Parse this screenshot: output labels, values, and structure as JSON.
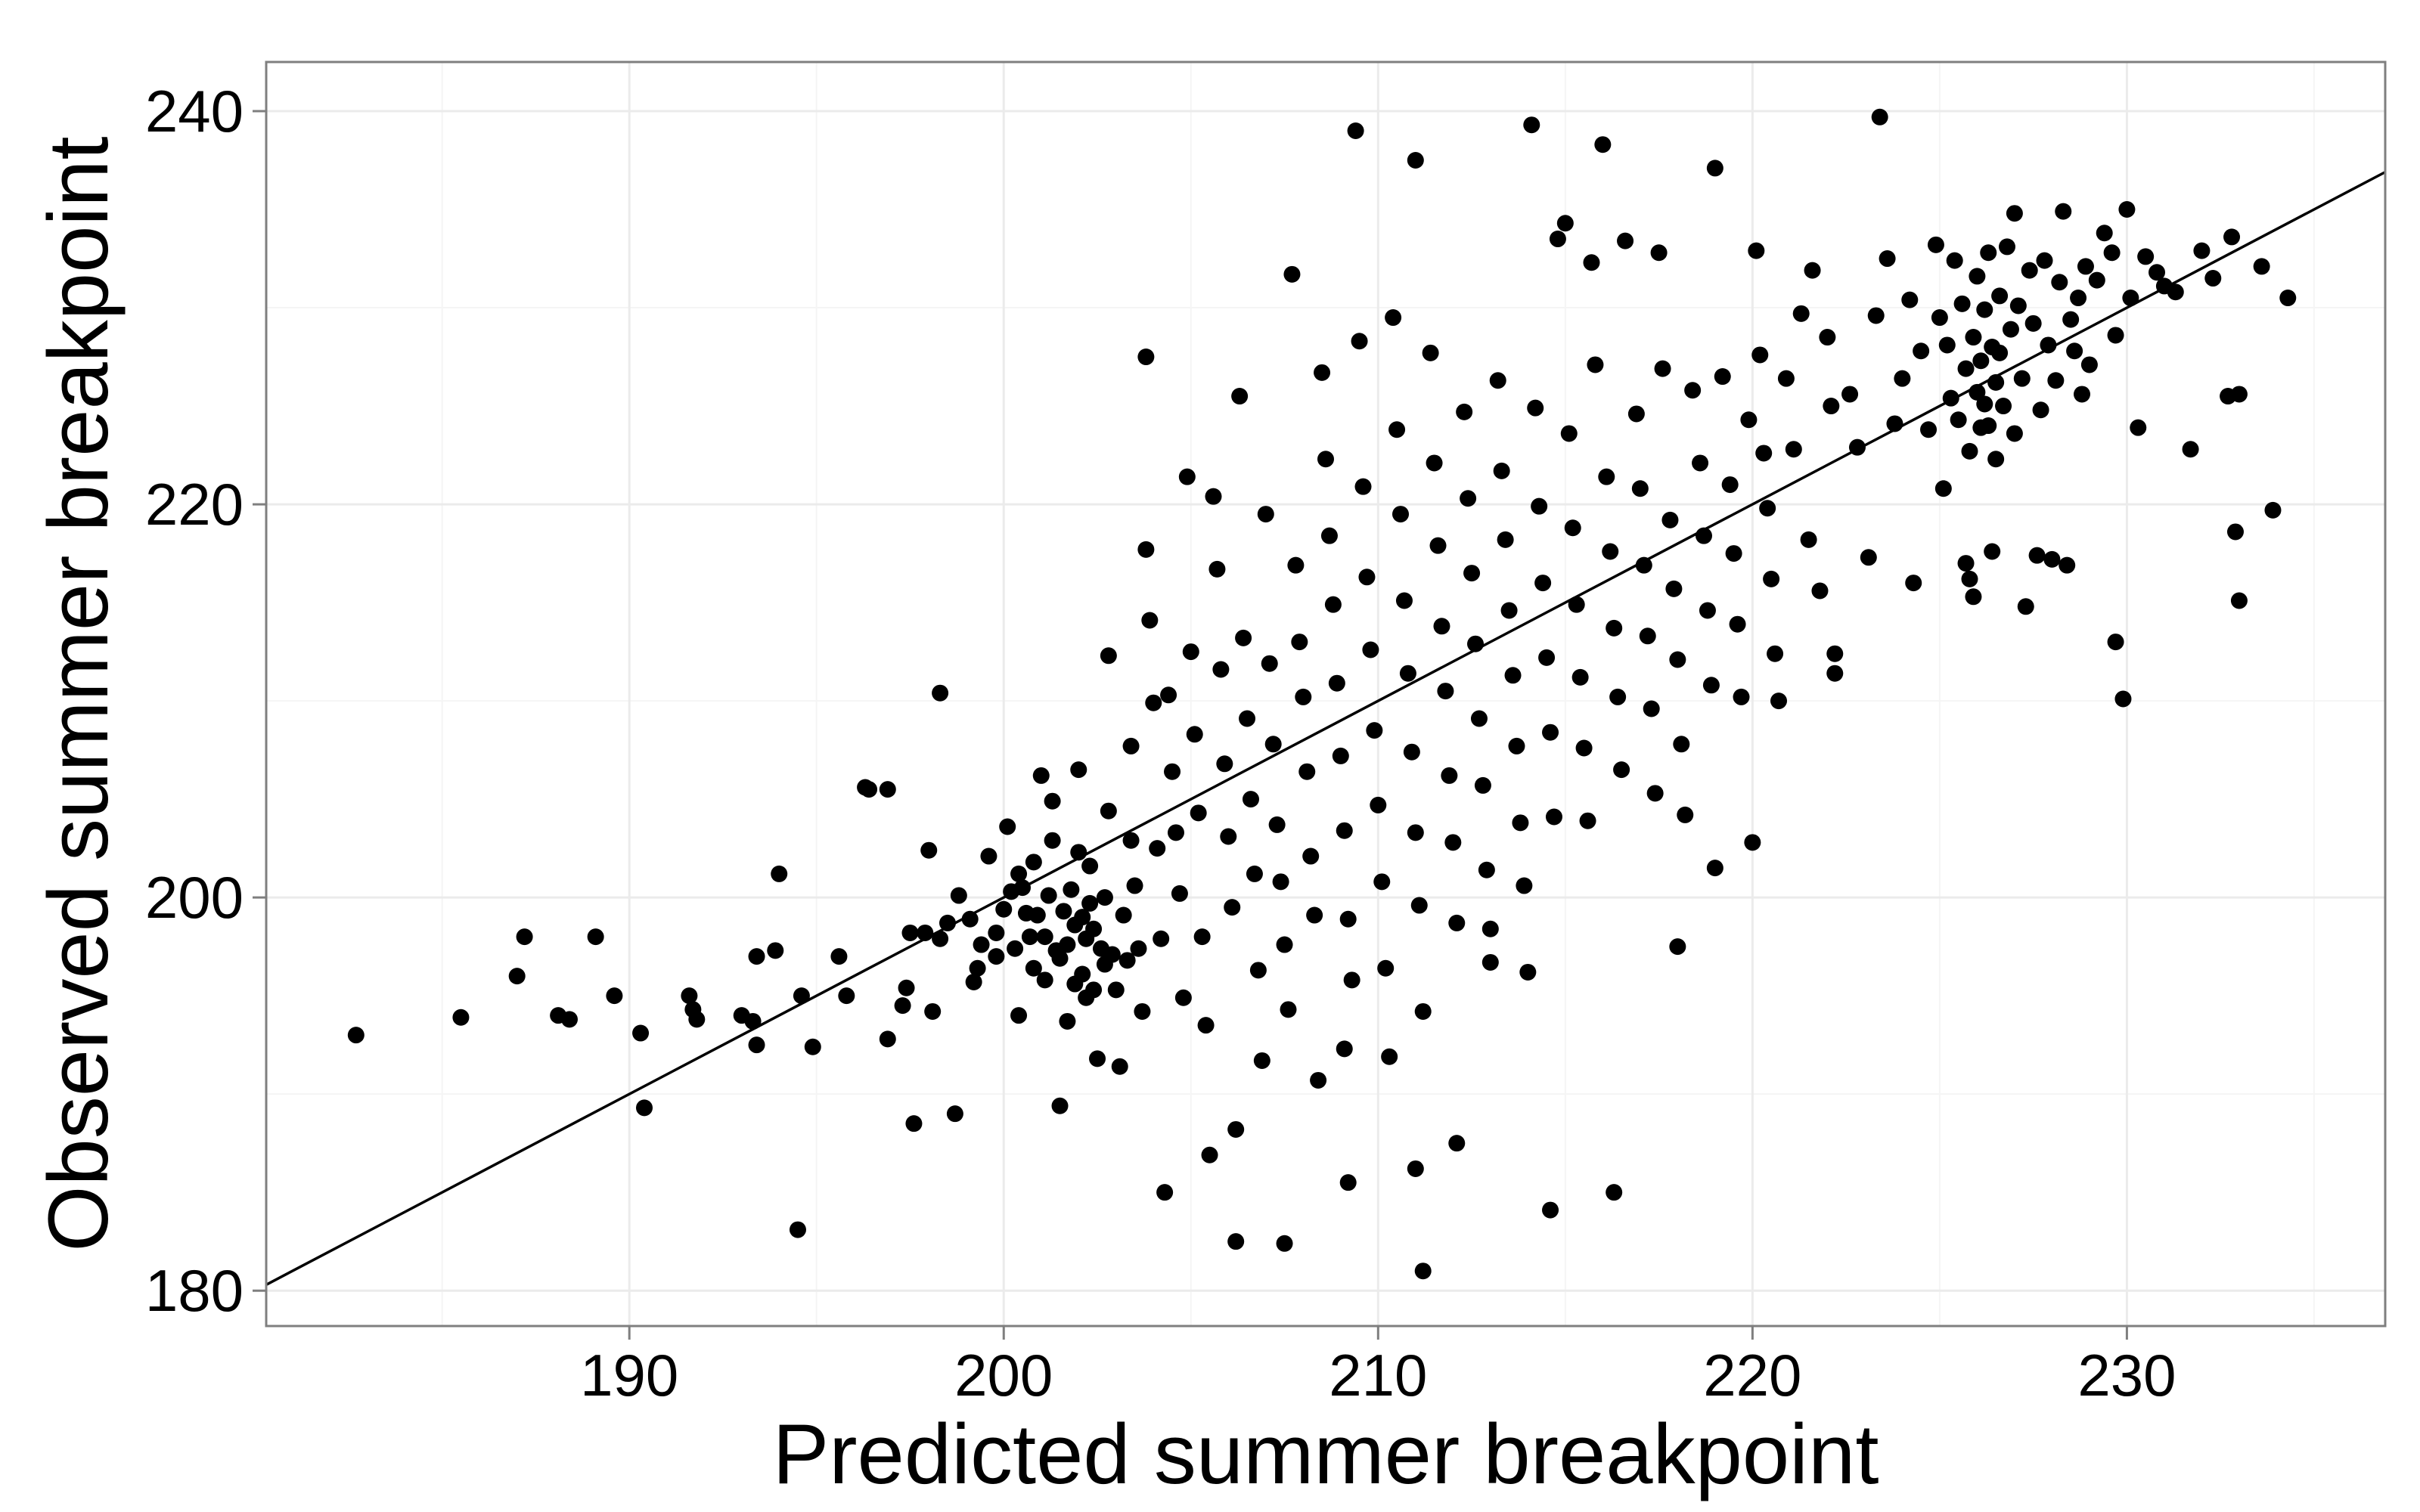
{
  "chart_data": {
    "type": "scatter",
    "title": "",
    "xlabel": "Predicted summer breakpoint",
    "ylabel": "Observed summer breakpoint",
    "xlim": [
      180.3,
      236.9
    ],
    "ylim": [
      178.2,
      242.5
    ],
    "x_ticks": [
      190,
      200,
      210,
      220,
      230
    ],
    "x_tick_labels": [
      "190",
      "200",
      "210",
      "220",
      "230"
    ],
    "y_ticks": [
      180,
      200,
      220,
      240
    ],
    "y_tick_labels": [
      "180",
      "200",
      "220",
      "240"
    ],
    "grid": true,
    "legend": "none",
    "fit_line": {
      "slope": 1,
      "intercept": 0,
      "x_range": [
        180.3,
        236.9
      ]
    },
    "colors": {
      "points": "#000000",
      "line": "#000000",
      "panel_border": "#7f7f7f",
      "grid_major": "#ebebeb",
      "grid_minor": "#f5f5f5"
    },
    "points": [
      [
        182.7,
        193
      ],
      [
        185.5,
        193.9
      ],
      [
        187.2,
        198
      ],
      [
        187,
        196
      ],
      [
        188.1,
        194
      ],
      [
        188.4,
        193.8
      ],
      [
        189.1,
        198
      ],
      [
        189.6,
        195
      ],
      [
        190.3,
        193.1
      ],
      [
        190.4,
        189.3
      ],
      [
        191.6,
        195
      ],
      [
        191.7,
        194.3
      ],
      [
        191.8,
        193.8
      ],
      [
        193,
        194
      ],
      [
        193.3,
        193.7
      ],
      [
        193.4,
        197
      ],
      [
        193.4,
        192.5
      ],
      [
        193.9,
        197.3
      ],
      [
        194,
        201.2
      ],
      [
        194.5,
        183.1
      ],
      [
        194.6,
        195
      ],
      [
        194.9,
        192.4
      ],
      [
        195.6,
        197
      ],
      [
        195.8,
        195
      ],
      [
        196.3,
        205.6
      ],
      [
        196.9,
        192.8
      ],
      [
        196.9,
        205.5
      ],
      [
        197.3,
        194.5
      ],
      [
        197.4,
        195.4
      ],
      [
        197.5,
        198.2
      ],
      [
        197.6,
        188.5
      ],
      [
        197.9,
        198.2
      ],
      [
        198,
        202.4
      ],
      [
        198.1,
        194.2
      ],
      [
        198.3,
        197.9
      ],
      [
        198.3,
        210.4
      ],
      [
        198.5,
        198.7
      ],
      [
        198.7,
        189
      ],
      [
        198.8,
        200.1
      ],
      [
        199.1,
        198.9
      ],
      [
        199.2,
        195.7
      ],
      [
        199.3,
        196.4
      ],
      [
        199.4,
        197.6
      ],
      [
        199.6,
        202.1
      ],
      [
        199.8,
        198.2
      ],
      [
        199.8,
        197
      ],
      [
        200,
        199.4
      ],
      [
        200.1,
        203.6
      ],
      [
        200.2,
        200.3
      ],
      [
        200.3,
        197.4
      ],
      [
        200.4,
        201.2
      ],
      [
        200.4,
        194
      ],
      [
        200.5,
        200.5
      ],
      [
        200.6,
        199.2
      ],
      [
        200.7,
        198
      ],
      [
        200.8,
        196.4
      ],
      [
        200.8,
        201.8
      ],
      [
        200.9,
        199.1
      ],
      [
        201,
        206.2
      ],
      [
        201.1,
        198
      ],
      [
        201.1,
        195.8
      ],
      [
        201.2,
        200.1
      ],
      [
        201.3,
        202.9
      ],
      [
        201.3,
        204.9
      ],
      [
        201.4,
        197.3
      ],
      [
        201.5,
        196.9
      ],
      [
        201.5,
        189.4
      ],
      [
        201.6,
        199.3
      ],
      [
        201.7,
        197.6
      ],
      [
        201.7,
        193.7
      ],
      [
        201.8,
        200.4
      ],
      [
        201.9,
        198.6
      ],
      [
        201.9,
        195.6
      ],
      [
        202,
        202.3
      ],
      [
        202,
        206.5
      ],
      [
        202.1,
        199
      ],
      [
        202.1,
        196.1
      ],
      [
        202.2,
        197.9
      ],
      [
        202.2,
        194.9
      ],
      [
        202.3,
        201.6
      ],
      [
        202.3,
        199.7
      ],
      [
        202.4,
        198.4
      ],
      [
        202.4,
        195.3
      ],
      [
        202.5,
        191.8
      ],
      [
        202.6,
        197.4
      ],
      [
        202.7,
        200
      ],
      [
        202.7,
        196.6
      ],
      [
        202.8,
        212.3
      ],
      [
        202.8,
        204.4
      ],
      [
        202.9,
        197.1
      ],
      [
        203,
        195.3
      ],
      [
        203.1,
        191.4
      ],
      [
        203.2,
        199.1
      ],
      [
        203.3,
        196.8
      ],
      [
        203.4,
        207.7
      ],
      [
        203.4,
        202.9
      ],
      [
        203.5,
        200.6
      ],
      [
        203.6,
        197.4
      ],
      [
        203.7,
        194.2
      ],
      [
        203.8,
        227.5
      ],
      [
        203.8,
        217.7
      ],
      [
        203.9,
        214.1
      ],
      [
        204,
        209.9
      ],
      [
        204.1,
        202.5
      ],
      [
        204.2,
        197.9
      ],
      [
        204.3,
        185
      ],
      [
        204.4,
        210.3
      ],
      [
        204.5,
        206.4
      ],
      [
        204.6,
        203.3
      ],
      [
        204.7,
        200.2
      ],
      [
        204.8,
        194.9
      ],
      [
        204.9,
        221.4
      ],
      [
        205,
        212.5
      ],
      [
        205.1,
        208.3
      ],
      [
        205.2,
        204.3
      ],
      [
        205.3,
        198
      ],
      [
        205.4,
        193.5
      ],
      [
        205.5,
        186.9
      ],
      [
        205.6,
        220.4
      ],
      [
        205.7,
        216.7
      ],
      [
        205.8,
        211.6
      ],
      [
        205.9,
        206.8
      ],
      [
        206,
        203.1
      ],
      [
        206.1,
        199.5
      ],
      [
        206.2,
        182.5
      ],
      [
        206.2,
        188.2
      ],
      [
        206.3,
        225.5
      ],
      [
        206.4,
        213.2
      ],
      [
        206.5,
        209.1
      ],
      [
        206.6,
        205
      ],
      [
        206.7,
        201.2
      ],
      [
        206.8,
        196.3
      ],
      [
        206.9,
        191.7
      ],
      [
        207,
        219.5
      ],
      [
        207.1,
        211.9
      ],
      [
        207.2,
        207.8
      ],
      [
        207.3,
        203.7
      ],
      [
        207.4,
        200.8
      ],
      [
        207.5,
        197.6
      ],
      [
        207.6,
        194.3
      ],
      [
        207.5,
        182.4
      ],
      [
        207.7,
        231.7
      ],
      [
        207.8,
        216.9
      ],
      [
        207.9,
        213
      ],
      [
        208,
        210.2
      ],
      [
        208.1,
        206.4
      ],
      [
        208.2,
        202.1
      ],
      [
        208.3,
        199.1
      ],
      [
        208.4,
        190.7
      ],
      [
        208.5,
        226.7
      ],
      [
        208.6,
        222.3
      ],
      [
        208.7,
        218.4
      ],
      [
        208.8,
        214.9
      ],
      [
        208.9,
        210.9
      ],
      [
        209,
        207.2
      ],
      [
        209.1,
        203.4
      ],
      [
        209.2,
        198.9
      ],
      [
        209.3,
        195.8
      ],
      [
        209.1,
        192.3
      ],
      [
        209.2,
        185.5
      ],
      [
        209.4,
        239
      ],
      [
        209.5,
        228.3
      ],
      [
        209.6,
        220.9
      ],
      [
        209.7,
        216.3
      ],
      [
        209.8,
        212.6
      ],
      [
        209.9,
        208.5
      ],
      [
        210,
        204.7
      ],
      [
        210.1,
        200.8
      ],
      [
        210.2,
        196.4
      ],
      [
        210.3,
        191.9
      ],
      [
        210.4,
        229.5
      ],
      [
        210.5,
        223.8
      ],
      [
        210.6,
        219.5
      ],
      [
        210.7,
        215.1
      ],
      [
        210.8,
        211.4
      ],
      [
        210.9,
        207.4
      ],
      [
        211,
        203.3
      ],
      [
        211.1,
        199.6
      ],
      [
        211.2,
        194.2
      ],
      [
        211,
        186.2
      ],
      [
        211,
        237.5
      ],
      [
        211.2,
        181
      ],
      [
        211.4,
        227.7
      ],
      [
        211.5,
        222.1
      ],
      [
        211.6,
        217.9
      ],
      [
        211.7,
        213.8
      ],
      [
        211.8,
        210.5
      ],
      [
        211.9,
        206.2
      ],
      [
        212,
        202.8
      ],
      [
        212.1,
        198.7
      ],
      [
        212.1,
        187.5
      ],
      [
        212.3,
        224.7
      ],
      [
        212.4,
        220.3
      ],
      [
        212.5,
        216.5
      ],
      [
        212.6,
        212.9
      ],
      [
        212.7,
        209.1
      ],
      [
        212.8,
        205.7
      ],
      [
        212.9,
        201.4
      ],
      [
        213,
        196.7
      ],
      [
        213,
        198.4
      ],
      [
        213.2,
        226.3
      ],
      [
        213.3,
        221.7
      ],
      [
        213.4,
        218.2
      ],
      [
        213.5,
        214.6
      ],
      [
        213.6,
        211.3
      ],
      [
        213.7,
        207.7
      ],
      [
        213.8,
        203.8
      ],
      [
        213.9,
        200.6
      ],
      [
        214,
        196.2
      ],
      [
        214.1,
        239.3
      ],
      [
        214.2,
        224.9
      ],
      [
        214.3,
        219.9
      ],
      [
        214.4,
        216
      ],
      [
        214.5,
        212.2
      ],
      [
        214.6,
        208.4
      ],
      [
        214.7,
        204.1
      ],
      [
        214.8,
        233.5
      ],
      [
        214.6,
        184.1
      ],
      [
        215,
        234.3
      ],
      [
        215.1,
        223.6
      ],
      [
        215.2,
        218.8
      ],
      [
        215.3,
        214.9
      ],
      [
        215.4,
        211.2
      ],
      [
        215.5,
        207.6
      ],
      [
        215.6,
        203.9
      ],
      [
        215.7,
        232.3
      ],
      [
        215.8,
        227.1
      ],
      [
        216,
        238.3
      ],
      [
        216.1,
        221.4
      ],
      [
        216.2,
        217.6
      ],
      [
        216.3,
        213.7
      ],
      [
        216.4,
        210.2
      ],
      [
        216.5,
        206.5
      ],
      [
        216.6,
        233.4
      ],
      [
        216.3,
        185
      ],
      [
        216.9,
        224.6
      ],
      [
        217,
        220.8
      ],
      [
        217.1,
        216.9
      ],
      [
        217.2,
        213.3
      ],
      [
        217.3,
        209.6
      ],
      [
        217.4,
        205.3
      ],
      [
        217.5,
        232.8
      ],
      [
        217.6,
        226.9
      ],
      [
        217.8,
        219.2
      ],
      [
        217.9,
        215.7
      ],
      [
        218,
        212.1
      ],
      [
        218.1,
        207.8
      ],
      [
        218.2,
        204.2
      ],
      [
        218,
        197.5
      ],
      [
        218.4,
        225.8
      ],
      [
        218.6,
        222.1
      ],
      [
        218.7,
        218.4
      ],
      [
        218.8,
        214.6
      ],
      [
        218.9,
        210.8
      ],
      [
        219,
        237.1
      ],
      [
        219,
        201.5
      ],
      [
        219.2,
        226.5
      ],
      [
        219.4,
        221
      ],
      [
        219.5,
        217.5
      ],
      [
        219.6,
        213.9
      ],
      [
        219.7,
        210.2
      ],
      [
        219.9,
        224.3
      ],
      [
        220,
        202.8
      ],
      [
        220.1,
        232.9
      ],
      [
        220.2,
        227.6
      ],
      [
        220.3,
        222.6
      ],
      [
        220.4,
        219.8
      ],
      [
        220.5,
        216.2
      ],
      [
        220.6,
        212.4
      ],
      [
        220.7,
        210
      ],
      [
        220.9,
        226.4
      ],
      [
        221.1,
        222.8
      ],
      [
        221.3,
        229.7
      ],
      [
        221.5,
        218.2
      ],
      [
        221.6,
        231.9
      ],
      [
        221.8,
        215.6
      ],
      [
        222,
        228.5
      ],
      [
        222.1,
        225
      ],
      [
        222.2,
        212.4
      ],
      [
        222.2,
        211.4
      ],
      [
        222.6,
        225.6
      ],
      [
        222.8,
        222.9
      ],
      [
        223.1,
        217.3
      ],
      [
        223.3,
        229.6
      ],
      [
        223.4,
        239.7
      ],
      [
        223.6,
        232.5
      ],
      [
        223.8,
        224.1
      ],
      [
        224,
        226.4
      ],
      [
        224.2,
        230.4
      ],
      [
        224.3,
        216
      ],
      [
        224.5,
        227.8
      ],
      [
        224.7,
        223.8
      ],
      [
        224.9,
        233.2
      ],
      [
        225,
        229.5
      ],
      [
        225.1,
        220.8
      ],
      [
        225.2,
        228.1
      ],
      [
        225.3,
        225.4
      ],
      [
        225.4,
        232.4
      ],
      [
        225.5,
        224.3
      ],
      [
        225.6,
        230.2
      ],
      [
        225.7,
        226.9
      ],
      [
        225.7,
        217
      ],
      [
        225.8,
        222.7
      ],
      [
        225.8,
        216.2
      ],
      [
        225.9,
        228.5
      ],
      [
        225.9,
        215.3
      ],
      [
        226,
        225.7
      ],
      [
        226,
        231.6
      ],
      [
        226.1,
        223.9
      ],
      [
        226.1,
        227.3
      ],
      [
        226.2,
        229.9
      ],
      [
        226.2,
        225.1
      ],
      [
        226.3,
        232.8
      ],
      [
        226.3,
        224
      ],
      [
        226.4,
        228
      ],
      [
        226.4,
        217.6
      ],
      [
        226.5,
        226.2
      ],
      [
        226.5,
        222.3
      ],
      [
        226.6,
        230.6
      ],
      [
        226.6,
        227.7
      ],
      [
        226.7,
        225
      ],
      [
        226.8,
        233.1
      ],
      [
        226.9,
        228.9
      ],
      [
        227,
        223.6
      ],
      [
        227,
        234.8
      ],
      [
        227.1,
        230.1
      ],
      [
        227.2,
        226.4
      ],
      [
        227.3,
        214.8
      ],
      [
        227.4,
        231.9
      ],
      [
        227.5,
        229.2
      ],
      [
        227.6,
        217.4
      ],
      [
        227.7,
        224.8
      ],
      [
        227.8,
        232.4
      ],
      [
        227.9,
        228.1
      ],
      [
        228,
        217.2
      ],
      [
        228.1,
        226.3
      ],
      [
        228.2,
        231.3
      ],
      [
        228.3,
        234.9
      ],
      [
        228.4,
        216.9
      ],
      [
        228.5,
        229.4
      ],
      [
        228.6,
        227.8
      ],
      [
        228.7,
        230.5
      ],
      [
        228.8,
        225.6
      ],
      [
        228.9,
        232.1
      ],
      [
        229,
        227.1
      ],
      [
        229.2,
        231.4
      ],
      [
        229.4,
        233.8
      ],
      [
        229.6,
        232.8
      ],
      [
        229.7,
        228.6
      ],
      [
        229.7,
        213
      ],
      [
        229.9,
        210.1
      ],
      [
        230,
        235
      ],
      [
        230.1,
        230.5
      ],
      [
        230.3,
        223.9
      ],
      [
        230.5,
        232.6
      ],
      [
        230.8,
        231.8
      ],
      [
        231,
        231.1
      ],
      [
        231.3,
        230.8
      ],
      [
        231.7,
        222.8
      ],
      [
        232,
        232.9
      ],
      [
        232.3,
        231.5
      ],
      [
        232.7,
        225.5
      ],
      [
        232.8,
        233.6
      ],
      [
        232.9,
        218.6
      ],
      [
        233,
        225.6
      ],
      [
        233,
        215.1
      ],
      [
        233.6,
        232.1
      ],
      [
        233.9,
        219.7
      ],
      [
        234.3,
        230.5
      ],
      [
        196.4,
        205.5
      ]
    ]
  }
}
